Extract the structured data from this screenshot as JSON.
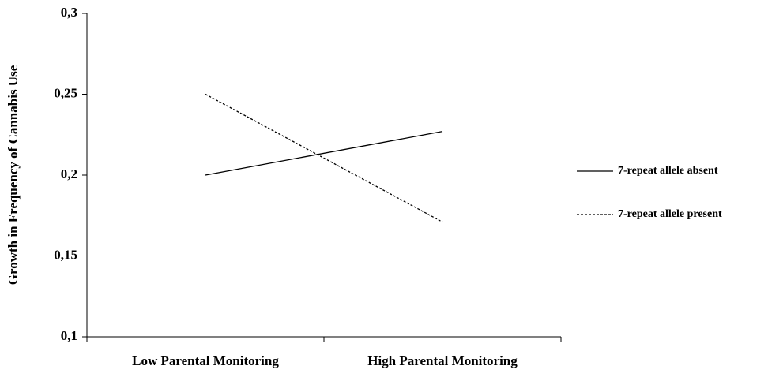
{
  "chart_data": {
    "type": "line",
    "y_label": "Growth in Frequency of Cannabis Use",
    "categories": [
      "Low Parental Monitoring",
      "High Parental Monitoring"
    ],
    "series": [
      {
        "name": "7-repeat allele absent",
        "color": "#000000",
        "linestyle": "solid",
        "values": [
          0.2,
          0.227
        ]
      },
      {
        "name": "7-repeat allele present",
        "color": "#000000",
        "linestyle": "dashed",
        "values": [
          0.25,
          0.171
        ]
      }
    ],
    "ylim": [
      0.1,
      0.3
    ],
    "yticks": [
      {
        "value": 0.1,
        "label": "0,1"
      },
      {
        "value": 0.15,
        "label": "0,15"
      },
      {
        "value": 0.2,
        "label": "0,2"
      },
      {
        "value": 0.25,
        "label": "0,25"
      },
      {
        "value": 0.3,
        "label": "0,3"
      }
    ],
    "legend": "right"
  }
}
